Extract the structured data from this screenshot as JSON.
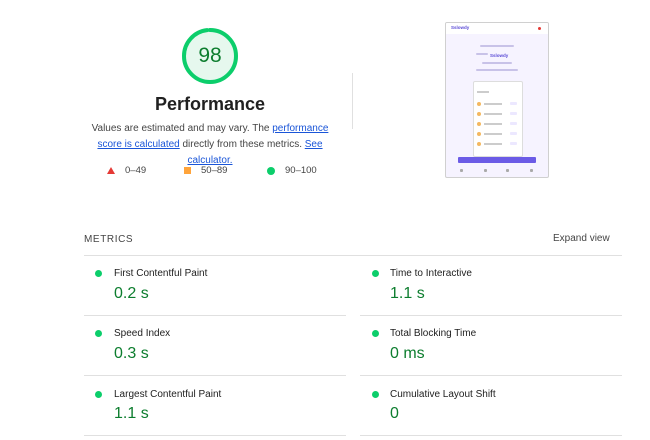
{
  "summary": {
    "score": "98",
    "title": "Performance",
    "desc_prefix": "Values are estimated and may vary. The ",
    "desc_link1": "performance score is calculated",
    "desc_mid": " directly from these metrics. ",
    "desc_link2": "See calculator.",
    "score_fraction": 0.98,
    "score_color": "#0cce6b"
  },
  "legend": [
    {
      "range": "0–49",
      "shape": "triangle",
      "color": "#e53935"
    },
    {
      "range": "50–89",
      "shape": "square",
      "color": "#ffa43b"
    },
    {
      "range": "90–100",
      "shape": "circle",
      "color": "#0cce6b"
    }
  ],
  "thumbnail": {
    "logo": "Sslowdy",
    "brand": "Sslowdy"
  },
  "metrics": {
    "title": "METRICS",
    "expand_label": "Expand view",
    "items": [
      {
        "label": "First Contentful Paint",
        "value": "0.2 s"
      },
      {
        "label": "Time to Interactive",
        "value": "1.1 s"
      },
      {
        "label": "Speed Index",
        "value": "0.3 s"
      },
      {
        "label": "Total Blocking Time",
        "value": "0 ms"
      },
      {
        "label": "Largest Contentful Paint",
        "value": "1.1 s"
      },
      {
        "label": "Cumulative Layout Shift",
        "value": "0"
      }
    ]
  }
}
